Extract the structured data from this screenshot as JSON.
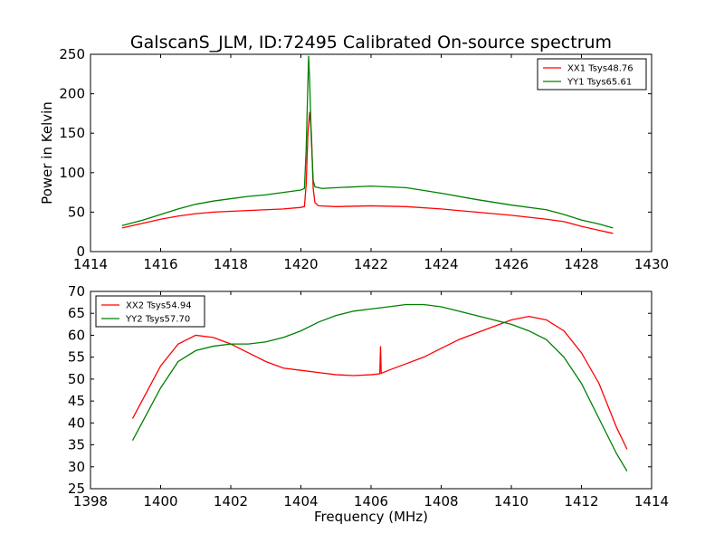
{
  "figure_title": "GalscanS_JLM, ID:72495 Calibrated On-source spectrum",
  "chart_data": [
    {
      "type": "line",
      "ylabel": "Power in Kelvin",
      "xlabel": "",
      "xlim": [
        1414,
        1430
      ],
      "ylim": [
        0,
        250
      ],
      "xticks": [
        1414,
        1416,
        1418,
        1420,
        1422,
        1424,
        1426,
        1428,
        1430
      ],
      "yticks": [
        0,
        50,
        100,
        150,
        200,
        250
      ],
      "legend_position": "top-right",
      "series": [
        {
          "name": "XX1 Tsys48.76",
          "color": "#ff0000",
          "points": [
            [
              1414.9,
              30
            ],
            [
              1415.5,
              36
            ],
            [
              1416,
              41
            ],
            [
              1416.5,
              45
            ],
            [
              1417,
              48
            ],
            [
              1417.5,
              50
            ],
            [
              1418,
              51
            ],
            [
              1418.5,
              52
            ],
            [
              1419,
              53
            ],
            [
              1419.5,
              54
            ],
            [
              1420,
              56
            ],
            [
              1420.1,
              57
            ],
            [
              1420.15,
              85
            ],
            [
              1420.2,
              150
            ],
            [
              1420.25,
              177
            ],
            [
              1420.3,
              150
            ],
            [
              1420.35,
              80
            ],
            [
              1420.4,
              62
            ],
            [
              1420.5,
              58
            ],
            [
              1421,
              57
            ],
            [
              1422,
              58
            ],
            [
              1423,
              57
            ],
            [
              1424,
              54
            ],
            [
              1425,
              50
            ],
            [
              1426,
              46
            ],
            [
              1427,
              41
            ],
            [
              1427.5,
              38
            ],
            [
              1428,
              32
            ],
            [
              1428.5,
              27
            ],
            [
              1428.9,
              23
            ]
          ]
        },
        {
          "name": "YY1 Tsys65.61",
          "color": "#008000",
          "points": [
            [
              1414.9,
              33
            ],
            [
              1415.5,
              40
            ],
            [
              1416,
              47
            ],
            [
              1416.5,
              54
            ],
            [
              1417,
              60
            ],
            [
              1417.5,
              64
            ],
            [
              1418,
              67
            ],
            [
              1418.5,
              70
            ],
            [
              1419,
              72
            ],
            [
              1419.5,
              75
            ],
            [
              1420,
              78
            ],
            [
              1420.1,
              80
            ],
            [
              1420.15,
              130
            ],
            [
              1420.2,
              215
            ],
            [
              1420.22,
              248
            ],
            [
              1420.25,
              215
            ],
            [
              1420.3,
              140
            ],
            [
              1420.35,
              90
            ],
            [
              1420.4,
              82
            ],
            [
              1420.6,
              80
            ],
            [
              1421,
              81
            ],
            [
              1422,
              83
            ],
            [
              1423,
              81
            ],
            [
              1424,
              74
            ],
            [
              1425,
              66
            ],
            [
              1426,
              59
            ],
            [
              1427,
              53
            ],
            [
              1427.5,
              47
            ],
            [
              1428,
              40
            ],
            [
              1428.5,
              35
            ],
            [
              1428.9,
              30
            ]
          ]
        }
      ]
    },
    {
      "type": "line",
      "ylabel": "",
      "xlabel": "Frequency (MHz)",
      "xlim": [
        1398,
        1414
      ],
      "ylim": [
        25,
        70
      ],
      "xticks": [
        1398,
        1400,
        1402,
        1404,
        1406,
        1408,
        1410,
        1412,
        1414
      ],
      "yticks": [
        25,
        30,
        35,
        40,
        45,
        50,
        55,
        60,
        65,
        70
      ],
      "legend_position": "top-left",
      "series": [
        {
          "name": "XX2 Tsys54.94",
          "color": "#ff0000",
          "points": [
            [
              1399.2,
              41
            ],
            [
              1399.6,
              47
            ],
            [
              1400,
              53
            ],
            [
              1400.5,
              58
            ],
            [
              1401,
              60
            ],
            [
              1401.5,
              59.5
            ],
            [
              1402,
              58
            ],
            [
              1402.5,
              56
            ],
            [
              1403,
              54
            ],
            [
              1403.5,
              52.5
            ],
            [
              1404,
              52
            ],
            [
              1404.5,
              51.5
            ],
            [
              1405,
              51
            ],
            [
              1405.5,
              50.8
            ],
            [
              1406,
              51
            ],
            [
              1406.25,
              51.2
            ],
            [
              1406.27,
              57.5
            ],
            [
              1406.29,
              51.3
            ],
            [
              1406.5,
              52
            ],
            [
              1407,
              53.5
            ],
            [
              1407.5,
              55
            ],
            [
              1408,
              57
            ],
            [
              1408.5,
              59
            ],
            [
              1409,
              60.5
            ],
            [
              1409.5,
              62
            ],
            [
              1410,
              63.5
            ],
            [
              1410.5,
              64.3
            ],
            [
              1411,
              63.5
            ],
            [
              1411.5,
              61
            ],
            [
              1412,
              56
            ],
            [
              1412.5,
              49
            ],
            [
              1413,
              39
            ],
            [
              1413.3,
              34
            ]
          ]
        },
        {
          "name": "YY2 Tsys57.70",
          "color": "#008000",
          "points": [
            [
              1399.2,
              36
            ],
            [
              1399.6,
              42
            ],
            [
              1400,
              48
            ],
            [
              1400.5,
              54
            ],
            [
              1401,
              56.5
            ],
            [
              1401.5,
              57.5
            ],
            [
              1402,
              58
            ],
            [
              1402.5,
              58
            ],
            [
              1403,
              58.5
            ],
            [
              1403.5,
              59.5
            ],
            [
              1404,
              61
            ],
            [
              1404.5,
              63
            ],
            [
              1405,
              64.5
            ],
            [
              1405.5,
              65.5
            ],
            [
              1406,
              66
            ],
            [
              1406.5,
              66.5
            ],
            [
              1407,
              67
            ],
            [
              1407.5,
              67
            ],
            [
              1408,
              66.5
            ],
            [
              1408.5,
              65.5
            ],
            [
              1409,
              64.5
            ],
            [
              1409.5,
              63.5
            ],
            [
              1410,
              62.5
            ],
            [
              1410.5,
              61
            ],
            [
              1411,
              59
            ],
            [
              1411.5,
              55
            ],
            [
              1412,
              49
            ],
            [
              1412.5,
              41
            ],
            [
              1413,
              33
            ],
            [
              1413.3,
              29
            ]
          ]
        }
      ]
    }
  ]
}
